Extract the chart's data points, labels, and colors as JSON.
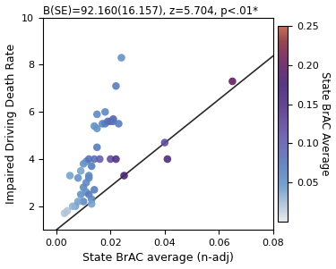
{
  "title": "B(SE)=92.160(16.157), z=5.704, p<.01*",
  "xlabel": "State BrAC average (n-adj)",
  "ylabel": "Impaired Driving Death Rate",
  "colorbar_label": "State BrAC Average",
  "xlim": [
    -0.005,
    0.08
  ],
  "ylim": [
    1.0,
    10.0
  ],
  "xticks": [
    0.0,
    0.02,
    0.04,
    0.06,
    0.08
  ],
  "yticks": [
    2.0,
    4.0,
    6.0,
    8.0,
    10.0
  ],
  "colorbar_ticks": [
    0.05,
    0.1,
    0.15,
    0.2,
    0.25
  ],
  "regression_intercept": 1.0,
  "regression_slope": 92.16,
  "scatter_x": [
    0.005,
    0.007,
    0.008,
    0.009,
    0.009,
    0.01,
    0.01,
    0.01,
    0.011,
    0.011,
    0.011,
    0.012,
    0.012,
    0.012,
    0.012,
    0.013,
    0.013,
    0.013,
    0.014,
    0.014,
    0.014,
    0.015,
    0.015,
    0.015,
    0.016,
    0.017,
    0.018,
    0.018,
    0.019,
    0.02,
    0.02,
    0.021,
    0.021,
    0.022,
    0.022,
    0.023,
    0.024,
    0.025,
    0.04,
    0.041,
    0.065,
    0.003,
    0.004,
    0.006,
    0.008
  ],
  "scatter_y": [
    3.3,
    2.0,
    3.2,
    2.5,
    3.5,
    2.8,
    3.8,
    2.2,
    2.6,
    3.0,
    3.9,
    2.5,
    3.2,
    4.0,
    3.3,
    2.3,
    2.1,
    3.7,
    2.7,
    4.0,
    5.4,
    5.3,
    5.9,
    4.5,
    4.0,
    5.5,
    5.5,
    6.0,
    5.6,
    5.6,
    4.0,
    5.7,
    5.6,
    7.1,
    4.0,
    5.5,
    8.3,
    3.3,
    4.7,
    4.0,
    7.3,
    1.7,
    1.8,
    2.0,
    2.2
  ],
  "scatter_color": [
    0.04,
    0.04,
    0.05,
    0.05,
    0.04,
    0.06,
    0.05,
    0.06,
    0.05,
    0.06,
    0.05,
    0.07,
    0.06,
    0.08,
    0.06,
    0.06,
    0.04,
    0.07,
    0.07,
    0.08,
    0.05,
    0.05,
    0.06,
    0.07,
    0.1,
    0.06,
    0.07,
    0.06,
    0.08,
    0.09,
    0.12,
    0.09,
    0.08,
    0.07,
    0.15,
    0.07,
    0.05,
    0.18,
    0.12,
    0.16,
    0.2,
    0.02,
    0.02,
    0.03,
    0.04
  ],
  "marker_size": 38,
  "line_color": "#2a2a2a",
  "background_color": "#ffffff",
  "title_fontsize": 8.5,
  "label_fontsize": 9,
  "tick_fontsize": 8
}
